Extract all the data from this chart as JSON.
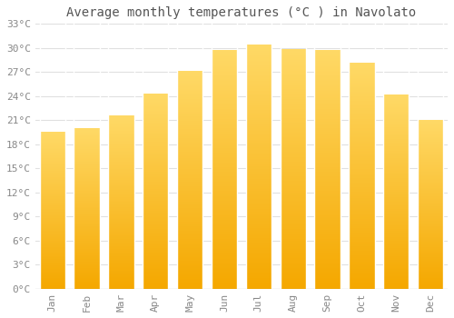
{
  "title": "Average monthly temperatures (°C ) in Navolato",
  "months": [
    "Jan",
    "Feb",
    "Mar",
    "Apr",
    "May",
    "Jun",
    "Jul",
    "Aug",
    "Sep",
    "Oct",
    "Nov",
    "Dec"
  ],
  "values": [
    19.5,
    20.0,
    21.5,
    24.3,
    27.1,
    29.7,
    30.4,
    29.8,
    29.7,
    28.1,
    24.1,
    21.0
  ],
  "bar_color_bottom": "#F5A800",
  "bar_color_top": "#FFD966",
  "bar_edge_color": "#FFFFFF",
  "ylim": [
    0,
    33
  ],
  "yticks": [
    0,
    3,
    6,
    9,
    12,
    15,
    18,
    21,
    24,
    27,
    30,
    33
  ],
  "ytick_labels": [
    "0°C",
    "3°C",
    "6°C",
    "9°C",
    "12°C",
    "15°C",
    "18°C",
    "21°C",
    "24°C",
    "27°C",
    "30°C",
    "33°C"
  ],
  "bg_color": "#FFFFFF",
  "grid_color": "#E0E0E0",
  "title_fontsize": 10,
  "tick_fontsize": 8,
  "font_family": "monospace"
}
